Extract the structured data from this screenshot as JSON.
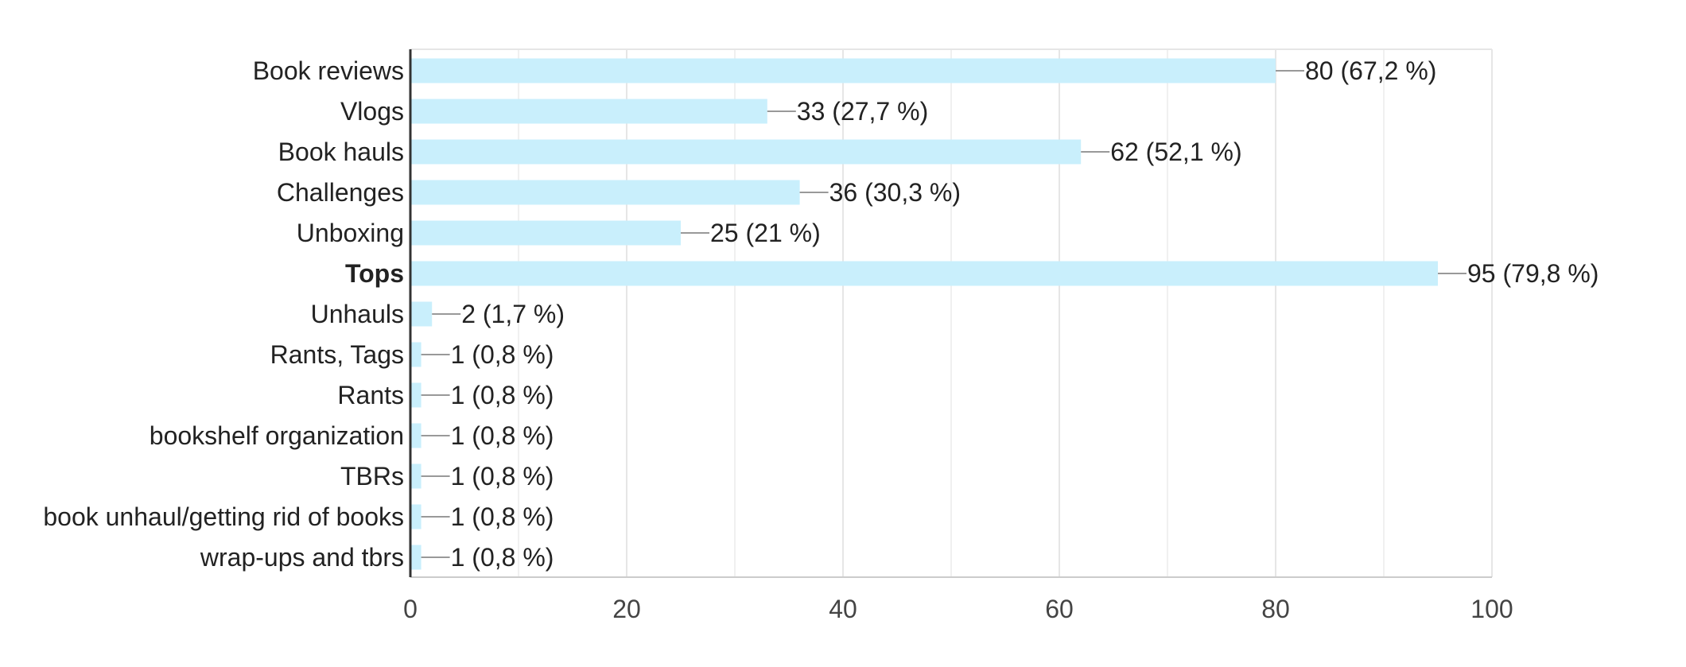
{
  "chart_data": {
    "type": "bar",
    "orientation": "horizontal",
    "categories": [
      "Book reviews",
      "Vlogs",
      "Book hauls",
      "Challenges",
      "Unboxing",
      "Tops",
      "Unhauls",
      "Rants, Tags",
      "Rants",
      "bookshelf organization",
      "TBRs",
      "book unhaul/getting rid of books",
      "wrap-ups and tbrs"
    ],
    "values": [
      80,
      33,
      62,
      36,
      25,
      95,
      2,
      1,
      1,
      1,
      1,
      1,
      1
    ],
    "data_labels": [
      "80 (67,2 %)",
      "33 (27,7 %)",
      "62 (52,1 %)",
      "36 (30,3 %)",
      "25 (21 %)",
      "95 (79,8 %)",
      "2 (1,7 %)",
      "1 (0,8 %)",
      "1 (0,8 %)",
      "1 (0,8 %)",
      "1 (0,8 %)",
      "1 (0,8 %)",
      "1 (0,8 %)"
    ],
    "bold_categories": [
      "Tops"
    ],
    "xlim": [
      0,
      100
    ],
    "x_ticks": [
      0,
      20,
      40,
      60,
      80,
      100
    ],
    "grid": true,
    "title": "",
    "xlabel": "",
    "ylabel": "",
    "colors": {
      "bar": "#c9effc",
      "grid": "#e6e6e6",
      "axis": "#333333",
      "leader": "#999999",
      "text": "#222222"
    }
  }
}
